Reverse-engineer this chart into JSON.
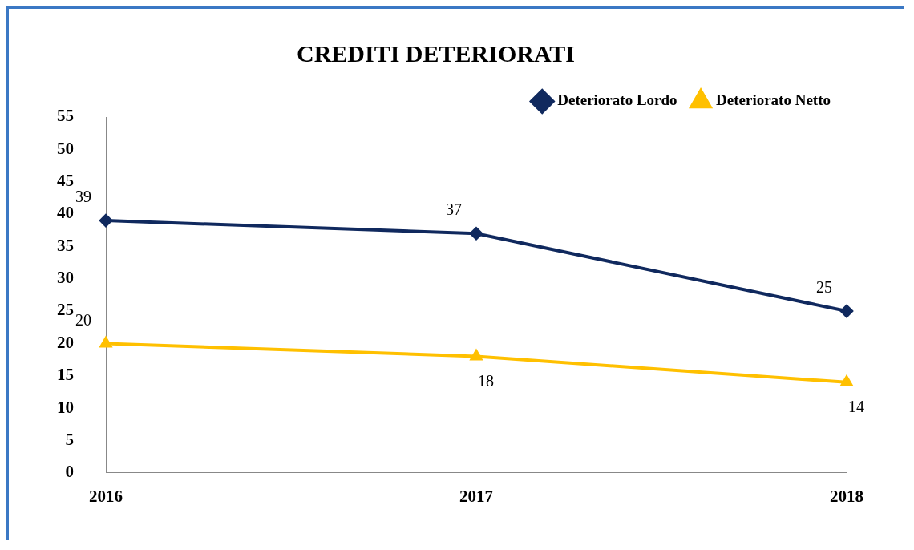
{
  "chart_data": {
    "type": "line",
    "title": "CREDITI DETERIORATI",
    "categories": [
      "2016",
      "2017",
      "2018"
    ],
    "series": [
      {
        "name": "Deteriorato Lordo",
        "color": "#10295e",
        "values": [
          39,
          37,
          25
        ],
        "marker": "diamond"
      },
      {
        "name": "Deteriorato Netto",
        "color": "#ffc000",
        "values": [
          20,
          18,
          14
        ],
        "marker": "triangle"
      }
    ],
    "ylim": [
      0,
      55
    ],
    "yticks": [
      0,
      5,
      10,
      15,
      20,
      25,
      30,
      35,
      40,
      45,
      50,
      55
    ],
    "grid": false,
    "legend": "top right",
    "data_labels": true,
    "line_style": "solid"
  }
}
